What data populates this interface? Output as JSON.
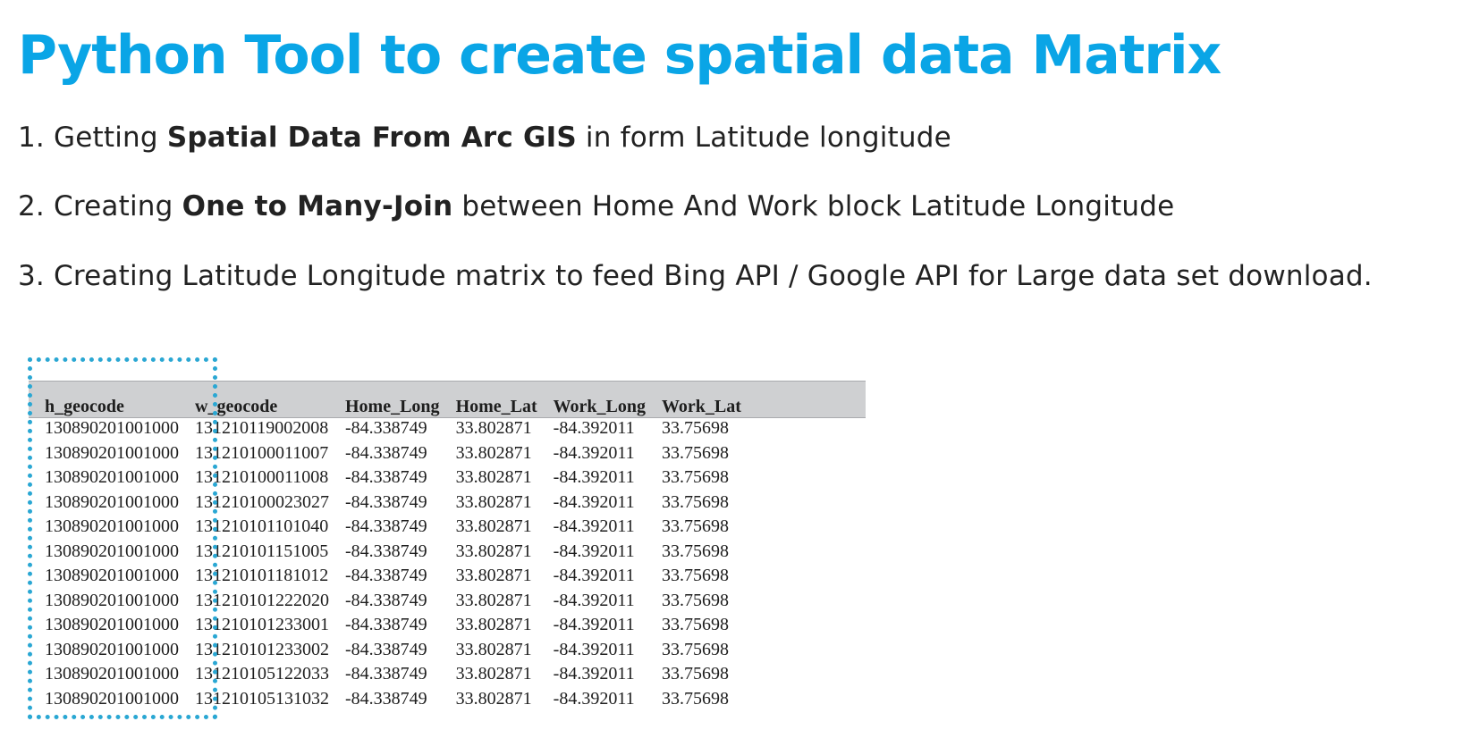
{
  "title": "Python Tool to create spatial data Matrix",
  "colors": {
    "title": "#0aa5e6",
    "highlight_box": "#2aa7d3",
    "header_bar": "#cfd0d2"
  },
  "steps": [
    {
      "prefix": "1. Getting ",
      "bold": "Spatial Data From Arc GIS",
      "suffix": "  in form Latitude longitude"
    },
    {
      "prefix": "2. Creating ",
      "bold": "One to Many-Join",
      "suffix": " between Home And Work block Latitude Longitude"
    },
    {
      "prefix": "3. Creating Latitude Longitude matrix to feed Bing API / Google API for Large data set download.",
      "bold": "",
      "suffix": ""
    }
  ],
  "table": {
    "headers": [
      "h_geocode",
      "w_geocode",
      "Home_Long",
      "Home_Lat",
      "Work_Long",
      "Work_Lat"
    ],
    "rows": [
      [
        "130890201001000",
        "131210119002008",
        "-84.338749",
        "33.802871",
        "-84.392011",
        "33.75698"
      ],
      [
        "130890201001000",
        "131210100011007",
        "-84.338749",
        "33.802871",
        "-84.392011",
        "33.75698"
      ],
      [
        "130890201001000",
        "131210100011008",
        "-84.338749",
        "33.802871",
        "-84.392011",
        "33.75698"
      ],
      [
        "130890201001000",
        "131210100023027",
        "-84.338749",
        "33.802871",
        "-84.392011",
        "33.75698"
      ],
      [
        "130890201001000",
        "131210101101040",
        "-84.338749",
        "33.802871",
        "-84.392011",
        "33.75698"
      ],
      [
        "130890201001000",
        "131210101151005",
        "-84.338749",
        "33.802871",
        "-84.392011",
        "33.75698"
      ],
      [
        "130890201001000",
        "131210101181012",
        "-84.338749",
        "33.802871",
        "-84.392011",
        "33.75698"
      ],
      [
        "130890201001000",
        "131210101222020",
        "-84.338749",
        "33.802871",
        "-84.392011",
        "33.75698"
      ],
      [
        "130890201001000",
        "131210101233001",
        "-84.338749",
        "33.802871",
        "-84.392011",
        "33.75698"
      ],
      [
        "130890201001000",
        "131210101233002",
        "-84.338749",
        "33.802871",
        "-84.392011",
        "33.75698"
      ],
      [
        "130890201001000",
        "131210105122033",
        "-84.338749",
        "33.802871",
        "-84.392011",
        "33.75698"
      ],
      [
        "130890201001000",
        "131210105131032",
        "-84.338749",
        "33.802871",
        "-84.392011",
        "33.75698"
      ]
    ]
  }
}
